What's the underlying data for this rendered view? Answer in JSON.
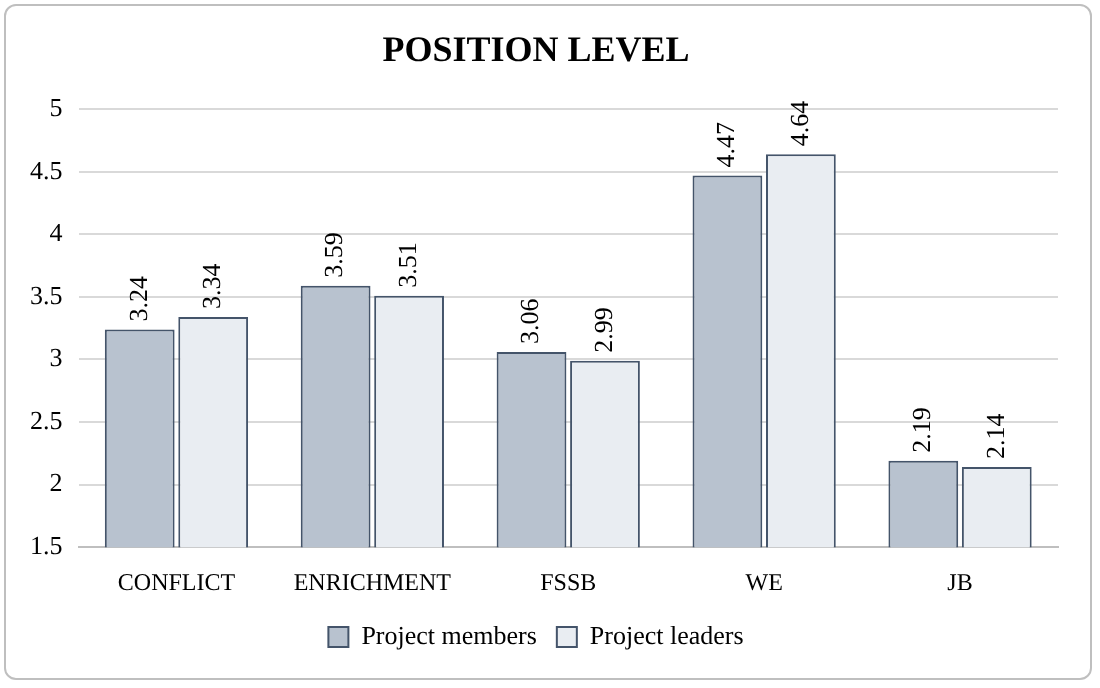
{
  "chart_data": {
    "type": "bar",
    "title": "POSITION LEVEL",
    "categories": [
      "CONFLICT",
      "ENRICHMENT",
      "FSSB",
      "WE",
      "JB"
    ],
    "series": [
      {
        "name": "Project members",
        "color": "#b8c2cf",
        "values": [
          3.24,
          3.59,
          3.06,
          4.47,
          2.19
        ]
      },
      {
        "name": "Project leaders",
        "color": "#e9edf2",
        "values": [
          3.34,
          3.51,
          2.99,
          4.64,
          2.14
        ]
      }
    ],
    "ylim": [
      1.5,
      5
    ],
    "yticks": [
      1.5,
      2,
      2.5,
      3,
      3.5,
      4,
      4.5,
      5
    ],
    "grid": "y",
    "legend": "bottom",
    "data_labels": true
  }
}
